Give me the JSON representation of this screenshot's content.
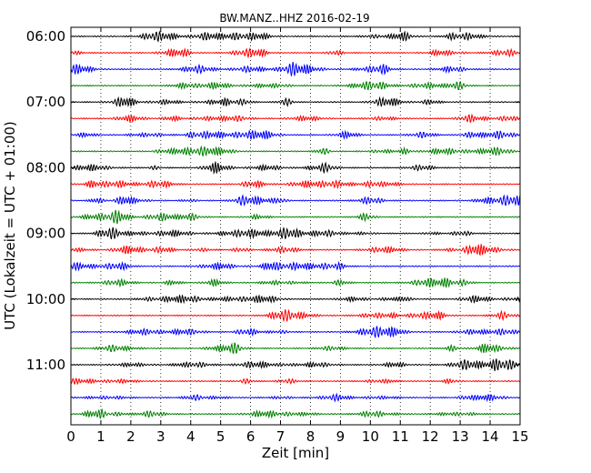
{
  "chart_data": {
    "type": "line",
    "title": "BW.MANZ..HHZ 2016-02-19",
    "xlabel": "Zeit  [min]",
    "ylabel": "UTC (Lokalzeit = UTC + 01:00)",
    "xlim": [
      0,
      15
    ],
    "xticks": [
      0,
      1,
      2,
      3,
      4,
      5,
      6,
      7,
      8,
      9,
      10,
      11,
      12,
      13,
      14,
      15
    ],
    "x_tick_labels": [
      "0",
      "1",
      "2",
      "3",
      "4",
      "5",
      "6",
      "7",
      "8",
      "9",
      "10",
      "11",
      "12",
      "13",
      "14",
      "15"
    ],
    "y_tick_labels": [
      "06:00",
      "07:00",
      "08:00",
      "09:00",
      "10:00",
      "11:00"
    ],
    "y_ticks_trace_index": [
      0,
      4,
      8,
      12,
      16,
      20
    ],
    "grid": "vertical-dotted",
    "trace_interval_minutes": 15,
    "trace_count": 24,
    "trace_colors": [
      "#000000",
      "#ff0000",
      "#0000ff",
      "#008000"
    ],
    "traces": [
      {
        "start": "06:00",
        "color": "#000000"
      },
      {
        "start": "06:15",
        "color": "#ff0000"
      },
      {
        "start": "06:30",
        "color": "#0000ff"
      },
      {
        "start": "06:45",
        "color": "#008000"
      },
      {
        "start": "07:00",
        "color": "#000000"
      },
      {
        "start": "07:15",
        "color": "#ff0000"
      },
      {
        "start": "07:30",
        "color": "#0000ff"
      },
      {
        "start": "07:45",
        "color": "#008000"
      },
      {
        "start": "08:00",
        "color": "#000000"
      },
      {
        "start": "08:15",
        "color": "#ff0000"
      },
      {
        "start": "08:30",
        "color": "#0000ff"
      },
      {
        "start": "08:45",
        "color": "#008000"
      },
      {
        "start": "09:00",
        "color": "#000000"
      },
      {
        "start": "09:15",
        "color": "#ff0000"
      },
      {
        "start": "09:30",
        "color": "#0000ff"
      },
      {
        "start": "09:45",
        "color": "#008000"
      },
      {
        "start": "10:00",
        "color": "#000000"
      },
      {
        "start": "10:15",
        "color": "#ff0000"
      },
      {
        "start": "10:30",
        "color": "#0000ff"
      },
      {
        "start": "10:45",
        "color": "#008000"
      },
      {
        "start": "11:00",
        "color": "#000000"
      },
      {
        "start": "11:15",
        "color": "#ff0000"
      },
      {
        "start": "11:30",
        "color": "#0000ff"
      },
      {
        "start": "11:45",
        "color": "#008000"
      }
    ]
  }
}
